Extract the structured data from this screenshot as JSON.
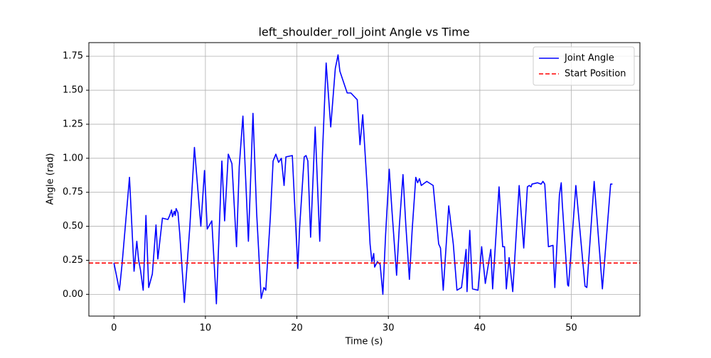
{
  "chart_data": {
    "type": "line",
    "title": "left_shoulder_roll_joint Angle vs Time",
    "x_label": "Time (s)",
    "y_label": "Angle (rad)",
    "xlim": [
      -2.74,
      57.5
    ],
    "ylim": [
      -0.16,
      1.85
    ],
    "xticks": [
      0,
      10,
      20,
      30,
      40,
      50
    ],
    "yticks": [
      {
        "value": 0,
        "label": "0.00"
      },
      {
        "value": 0.25,
        "label": "0.25"
      },
      {
        "value": 0.5,
        "label": "0.50"
      },
      {
        "value": 0.75,
        "label": "0.75"
      },
      {
        "value": 1,
        "label": "1.00"
      },
      {
        "value": 1.25,
        "label": "1.25"
      },
      {
        "value": 1.5,
        "label": "1.50"
      },
      {
        "value": 1.75,
        "label": "1.75"
      }
    ],
    "grid": true,
    "legend": "upper right",
    "series": [
      {
        "name": "Joint Angle",
        "color": "#0000ff",
        "x": [
          0,
          0.6,
          0.9,
          1.7,
          2.2,
          2.5,
          2.7,
          2.9,
          3.2,
          3.5,
          3.8,
          4.2,
          4.6,
          4.8,
          5.3,
          5.9,
          6.1,
          6.3,
          6.4,
          6.6,
          6.7,
          6.8,
          7.0,
          7.2,
          7.7,
          8.3,
          8.8,
          9.5,
          9.9,
          10.2,
          10.7,
          11.2,
          11.8,
          12.1,
          12.5,
          12.9,
          13.4,
          13.7,
          14.1,
          14.7,
          15.2,
          15.6,
          16.1,
          16.4,
          16.6,
          17.1,
          17.4,
          17.7,
          18.0,
          18.3,
          18.6,
          18.8,
          19.5,
          20.1,
          20.3,
          20.8,
          21.0,
          21.2,
          21.5,
          22.0,
          22.5,
          22.8,
          23.2,
          23.7,
          24.2,
          24.5,
          24.7,
          25.5,
          25.9,
          26.6,
          26.9,
          27.2,
          27.7,
          28.0,
          28.2,
          28.4,
          28.5,
          28.8,
          29.1,
          29.4,
          29.7,
          30.1,
          30.4,
          30.9,
          31.2,
          31.6,
          31.9,
          32.3,
          32.6,
          33.0,
          33.2,
          33.4,
          33.6,
          34.2,
          34.9,
          35.5,
          35.7,
          36.0,
          36.6,
          37.1,
          37.5,
          38.0,
          38.5,
          38.6,
          38.9,
          39.2,
          39.8,
          40.2,
          40.6,
          41.2,
          41.4,
          42.1,
          42.5,
          42.7,
          42.9,
          43.2,
          43.6,
          44.3,
          44.8,
          45.2,
          45.4,
          45.6,
          45.7,
          46.3,
          46.7,
          46.9,
          47.1,
          47.5,
          48.0,
          48.2,
          48.7,
          48.9,
          49.0,
          49.6,
          49.7,
          50.5,
          51.5,
          51.7,
          52.5,
          53.4,
          54.3,
          54.5
        ],
        "values": [
          0.23,
          0.03,
          0.23,
          0.86,
          0.17,
          0.39,
          0.25,
          0.18,
          0.03,
          0.58,
          0.05,
          0.15,
          0.51,
          0.26,
          0.56,
          0.55,
          0.58,
          0.62,
          0.57,
          0.61,
          0.58,
          0.63,
          0.6,
          0.44,
          -0.06,
          0.5,
          1.08,
          0.5,
          0.91,
          0.48,
          0.54,
          -0.07,
          0.98,
          0.54,
          1.03,
          0.96,
          0.35,
          0.94,
          1.31,
          0.39,
          1.33,
          0.6,
          -0.03,
          0.05,
          0.03,
          0.57,
          0.98,
          1.03,
          0.97,
          1.0,
          0.8,
          1.01,
          1.02,
          0.19,
          0.49,
          1.01,
          1.02,
          0.98,
          0.42,
          1.23,
          0.39,
          1.04,
          1.7,
          1.23,
          1.66,
          1.76,
          1.64,
          1.48,
          1.48,
          1.43,
          1.1,
          1.32,
          0.77,
          0.37,
          0.24,
          0.3,
          0.2,
          0.24,
          0.22,
          0.0,
          0.44,
          0.92,
          0.61,
          0.14,
          0.5,
          0.88,
          0.52,
          0.11,
          0.47,
          0.86,
          0.82,
          0.85,
          0.8,
          0.83,
          0.8,
          0.37,
          0.34,
          0.03,
          0.65,
          0.37,
          0.03,
          0.05,
          0.33,
          0.02,
          0.47,
          0.04,
          0.03,
          0.35,
          0.08,
          0.33,
          0.04,
          0.79,
          0.35,
          0.35,
          0.04,
          0.27,
          0.02,
          0.8,
          0.34,
          0.79,
          0.8,
          0.79,
          0.81,
          0.82,
          0.81,
          0.83,
          0.81,
          0.35,
          0.36,
          0.05,
          0.73,
          0.82,
          0.68,
          0.07,
          0.06,
          0.8,
          0.06,
          0.05,
          0.83,
          0.04,
          0.81,
          0.81
        ]
      }
    ],
    "reference_lines": [
      {
        "name": "Start Position",
        "value": 0.23,
        "color": "#ff0000",
        "style": "dashed"
      }
    ]
  }
}
